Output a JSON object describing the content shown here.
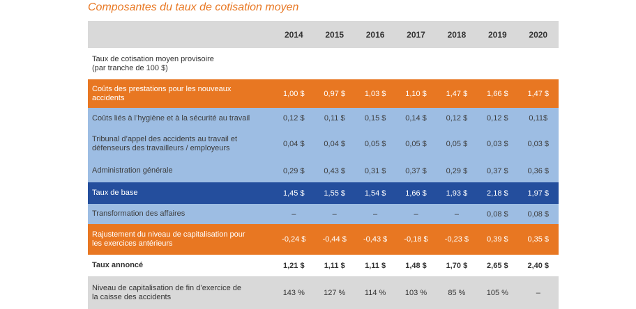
{
  "title": "Composantes du taux de cotisation moyen",
  "years": [
    "2014",
    "2015",
    "2016",
    "2017",
    "2018",
    "2019",
    "2020"
  ],
  "rows": [
    {
      "label_lines": [
        "Taux de cotisation moyen provisoire",
        "(par tranche de 100 $)"
      ],
      "values": [
        "",
        "",
        "",
        "",
        "",
        "",
        ""
      ]
    },
    {
      "label_lines": [
        "Coûts des prestations pour les nouveaux",
        "accidents"
      ],
      "values": [
        "1,00 $",
        "0,97 $",
        "1,03 $",
        "1,10 $",
        "1,47 $",
        "1,66 $",
        "1,47 $"
      ]
    },
    {
      "label_lines": [
        "Coûts liés à l’hygiène et à la sécurité au travail"
      ],
      "values": [
        "0,12 $",
        "0,11 $",
        "0,15 $",
        "0,14 $",
        "0,12 $",
        "0,12 $",
        "0,11$"
      ]
    },
    {
      "label_lines": [
        "Tribunal d’appel des accidents au travail et",
        "défenseurs des travailleurs / employeurs"
      ],
      "values": [
        "0,04 $",
        "0,04 $",
        "0,05 $",
        "0,05 $",
        "0,05 $",
        "0,03 $",
        "0,03 $"
      ]
    },
    {
      "label_lines": [
        "Administration générale"
      ],
      "values": [
        "0,29 $",
        "0,43 $",
        "0,31 $",
        "0,37 $",
        "0,29 $",
        "0,37 $",
        "0,36 $"
      ]
    },
    {
      "label_lines": [
        "Taux de base"
      ],
      "values": [
        "1,45 $",
        "1,55 $",
        "1,54 $",
        "1,66 $",
        "1,93 $",
        "2,18 $",
        "1,97 $"
      ]
    },
    {
      "label_lines": [
        "Transformation des affaires"
      ],
      "values": [
        "–",
        "–",
        "–",
        "–",
        "–",
        "0,08 $",
        "0,08 $"
      ]
    },
    {
      "label_lines": [
        "Rajustement du niveau de capitalisation pour",
        "les exercices antérieurs"
      ],
      "values": [
        "-0,24 $",
        "-0,44 $",
        "-0,43 $",
        "-0,18 $",
        "-0,23 $",
        "0,39 $",
        "0,35 $"
      ]
    },
    {
      "label_lines": [
        "Taux annoncé"
      ],
      "values": [
        "1,21 $",
        "1,11 $",
        "1,11 $",
        "1,48 $",
        "1,70 $",
        "2,65 $",
        "2,40 $"
      ]
    },
    {
      "label_lines": [
        "Niveau de capitalisation de fin d’exercice de",
        "la caisse des accidents"
      ],
      "values": [
        "143 %",
        "127 %",
        "114 %",
        "103 %",
        "85 %",
        "105 %",
        "–"
      ]
    }
  ],
  "colors": {
    "title": "#e87722",
    "header_bg": "#d9d9d9",
    "orange": "#e87722",
    "light_blue": "#9dbde3",
    "dark_blue": "#244e9d",
    "grey": "#d9d9d9"
  }
}
